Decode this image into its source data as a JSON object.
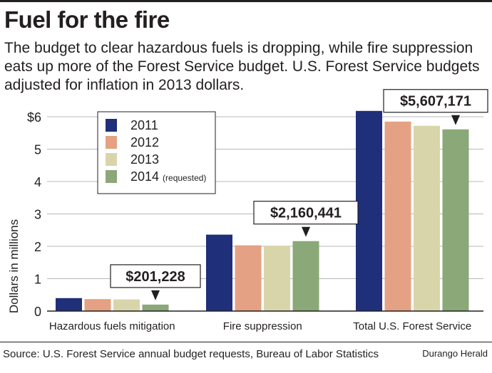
{
  "header": {
    "title": "Fuel for the fire",
    "subtitle_lines": [
      "The budget to clear hazardous fuels is dropping, while fire suppression",
      "eats up more of the Forest Service budget. U.S. Forest Service budgets",
      "adjusted for inflation in 2013 dollars."
    ]
  },
  "footer": {
    "source": "Source: U.S. Forest Service annual budget requests, Bureau of Labor Statistics",
    "credit": "Durango Herald"
  },
  "chart_data": {
    "type": "bar",
    "title": "Fuel for the fire",
    "xlabel": "",
    "ylabel": "Dollars in millions",
    "ylim": [
      0,
      6.3
    ],
    "yticks": [
      0,
      1,
      2,
      3,
      4,
      5,
      6
    ],
    "ytick_labels": [
      "0",
      "1",
      "2",
      "3",
      "4",
      "5",
      "$6"
    ],
    "grid": true,
    "legend_position": "top-left",
    "categories": [
      "Hazardous fuels mitigation",
      "Fire suppression",
      "Total U.S. Forest Service"
    ],
    "series": [
      {
        "name": "2011",
        "legend_note": "",
        "color": "#1f2f7a",
        "values": [
          0.4,
          2.36,
          6.18
        ]
      },
      {
        "name": "2012",
        "legend_note": "",
        "color": "#e5a183",
        "values": [
          0.37,
          2.03,
          5.85
        ]
      },
      {
        "name": "2013",
        "legend_note": "",
        "color": "#d9d5ab",
        "values": [
          0.36,
          2.02,
          5.72
        ]
      },
      {
        "name": "2014",
        "legend_note": "(requested)",
        "color": "#8aa878",
        "values": [
          0.2,
          2.16,
          5.61
        ]
      }
    ],
    "annotations": [
      {
        "text": "$201,228",
        "category": 0,
        "series": 3
      },
      {
        "text": "$2,160,441",
        "category": 1,
        "series": 3
      },
      {
        "text": "$5,607,171",
        "category": 2,
        "series": 3
      }
    ]
  }
}
